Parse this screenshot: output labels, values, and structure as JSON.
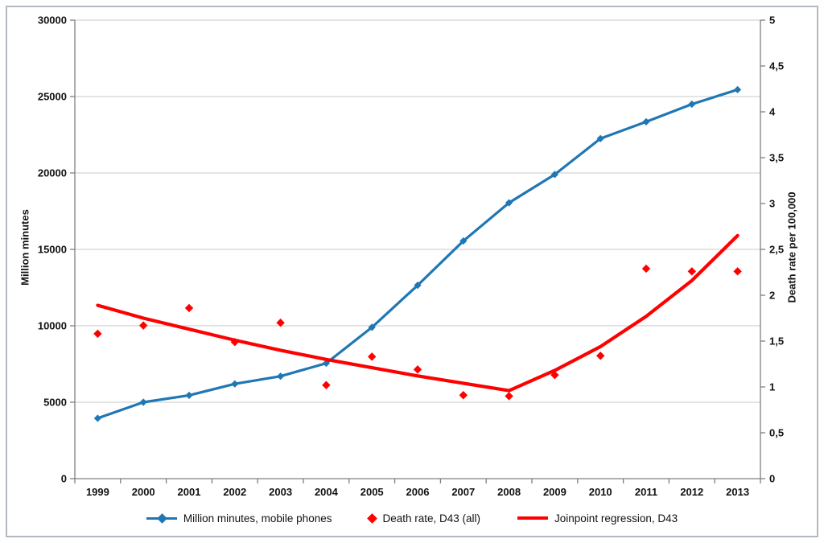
{
  "figure": {
    "background": "#ffffff",
    "border_color": "#b2b8bf",
    "grid_color": "#c9c9c9",
    "axis_color": "#7f7f7f",
    "text_color": "#121212"
  },
  "chart_data": {
    "type": "line",
    "title": "",
    "xlabel": "",
    "ylabel_left": "Million minutes",
    "ylabel_right": "Death rate per 100,000",
    "categories": [
      "1999",
      "2000",
      "2001",
      "2002",
      "2003",
      "2004",
      "2005",
      "2006",
      "2007",
      "2008",
      "2009",
      "2010",
      "2011",
      "2012",
      "2013"
    ],
    "ylim_left": [
      0,
      30000
    ],
    "ytick_step_left": 5000,
    "ylim_right": [
      0,
      5
    ],
    "ytick_step_right": 0.5,
    "right_decimal_separator": ",",
    "grid": true,
    "legend_position": "bottom",
    "series": [
      {
        "name": "Million minutes, mobile phones",
        "axis": "left",
        "style": "line-with-diamond-markers",
        "color": "#1f77b4",
        "values": [
          3950,
          5000,
          5450,
          6200,
          6700,
          7550,
          9900,
          12650,
          15550,
          18050,
          19900,
          22250,
          23350,
          24500,
          25450
        ]
      },
      {
        "name": "Death rate, D43 (all)",
        "axis": "right",
        "style": "scatter-diamond",
        "color": "#ff0000",
        "values": [
          1.58,
          1.67,
          1.86,
          1.49,
          1.7,
          1.02,
          1.33,
          1.19,
          0.91,
          0.9,
          1.13,
          1.34,
          2.29,
          2.26,
          2.26
        ]
      },
      {
        "name": "Joinpoint regression, D43",
        "axis": "right",
        "style": "thick-line",
        "color": "#ff0000",
        "values": [
          1.89,
          1.75,
          1.63,
          1.51,
          1.4,
          1.3,
          1.21,
          1.12,
          1.04,
          0.96,
          1.18,
          1.44,
          1.77,
          2.16,
          2.65
        ]
      }
    ]
  }
}
